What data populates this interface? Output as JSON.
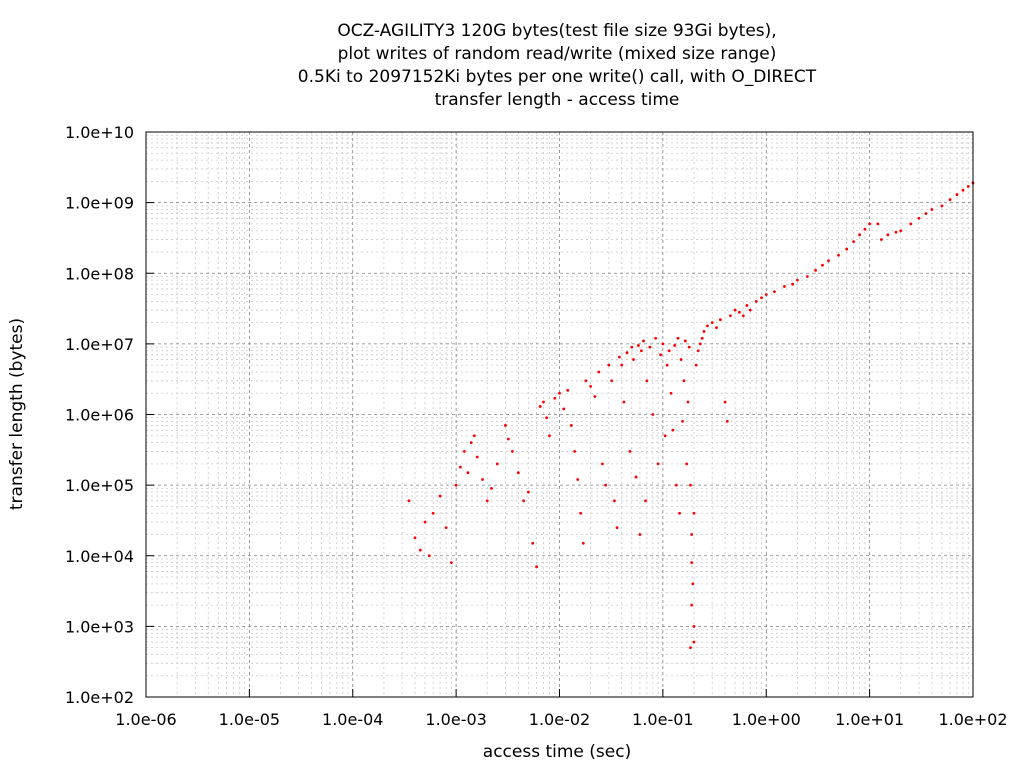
{
  "chart_data": {
    "type": "scatter",
    "title_lines": [
      "OCZ-AGILITY3 120G bytes(test file size 93Gi bytes),",
      "plot writes of random read/write (mixed size range)",
      "0.5Ki to 2097152Ki bytes per one write() call, with O_DIRECT",
      "transfer length - access time"
    ],
    "xlabel": "access time (sec)",
    "ylabel": "transfer length (bytes)",
    "x_scale": "log",
    "y_scale": "log",
    "xlim": [
      1e-06,
      100
    ],
    "ylim": [
      100,
      10000000000.0
    ],
    "x_ticks": [
      {
        "value": 1e-06,
        "label": "1.0e-06"
      },
      {
        "value": 1e-05,
        "label": "1.0e-05"
      },
      {
        "value": 0.0001,
        "label": "1.0e-04"
      },
      {
        "value": 0.001,
        "label": "1.0e-03"
      },
      {
        "value": 0.01,
        "label": "1.0e-02"
      },
      {
        "value": 0.1,
        "label": "1.0e-01"
      },
      {
        "value": 1,
        "label": "1.0e+00"
      },
      {
        "value": 10,
        "label": "1.0e+01"
      },
      {
        "value": 100,
        "label": "1.0e+02"
      }
    ],
    "y_ticks": [
      {
        "value": 100,
        "label": "1.0e+02"
      },
      {
        "value": 1000,
        "label": "1.0e+03"
      },
      {
        "value": 10000,
        "label": "1.0e+04"
      },
      {
        "value": 100000,
        "label": "1.0e+05"
      },
      {
        "value": 1000000,
        "label": "1.0e+06"
      },
      {
        "value": 10000000,
        "label": "1.0e+07"
      },
      {
        "value": 100000000,
        "label": "1.0e+08"
      },
      {
        "value": 1000000000,
        "label": "1.0e+09"
      },
      {
        "value": 10000000000,
        "label": "1.0e+10"
      }
    ],
    "grid": true,
    "legend": "none",
    "point_color": "#ff0000",
    "series": [
      {
        "points": [
          [
            0.00035,
            60000
          ],
          [
            0.0004,
            18000
          ],
          [
            0.00045,
            12000
          ],
          [
            0.0005,
            30000
          ],
          [
            0.00055,
            10000
          ],
          [
            0.0006,
            40000
          ],
          [
            0.0007,
            70000
          ],
          [
            0.0008,
            25000
          ],
          [
            0.0009,
            8000
          ],
          [
            0.001,
            100000
          ],
          [
            0.0011,
            180000
          ],
          [
            0.0012,
            300000
          ],
          [
            0.0013,
            150000
          ],
          [
            0.0014,
            400000
          ],
          [
            0.0015,
            500000
          ],
          [
            0.0016,
            250000
          ],
          [
            0.0018,
            120000
          ],
          [
            0.002,
            60000
          ],
          [
            0.0022,
            90000
          ],
          [
            0.0025,
            200000
          ],
          [
            0.003,
            700000
          ],
          [
            0.0032,
            450000
          ],
          [
            0.0035,
            300000
          ],
          [
            0.004,
            150000
          ],
          [
            0.0045,
            60000
          ],
          [
            0.005,
            80000
          ],
          [
            0.0055,
            15000
          ],
          [
            0.006,
            7000
          ],
          [
            0.0065,
            1300000
          ],
          [
            0.007,
            1500000
          ],
          [
            0.0075,
            900000
          ],
          [
            0.008,
            500000
          ],
          [
            0.009,
            1700000
          ],
          [
            0.01,
            2000000
          ],
          [
            0.011,
            1200000
          ],
          [
            0.012,
            2200000
          ],
          [
            0.013,
            700000
          ],
          [
            0.014,
            300000
          ],
          [
            0.015,
            120000
          ],
          [
            0.016,
            40000
          ],
          [
            0.017,
            15000
          ],
          [
            0.018,
            3000000
          ],
          [
            0.02,
            2500000
          ],
          [
            0.022,
            1800000
          ],
          [
            0.024,
            4000000
          ],
          [
            0.026,
            200000
          ],
          [
            0.028,
            100000
          ],
          [
            0.03,
            5000000
          ],
          [
            0.032,
            3000000
          ],
          [
            0.034,
            60000
          ],
          [
            0.036,
            25000
          ],
          [
            0.038,
            6500000
          ],
          [
            0.04,
            5000000
          ],
          [
            0.042,
            1500000
          ],
          [
            0.045,
            7500000
          ],
          [
            0.048,
            300000
          ],
          [
            0.05,
            9000000
          ],
          [
            0.052,
            6000000
          ],
          [
            0.055,
            130000
          ],
          [
            0.058,
            9500000
          ],
          [
            0.06,
            20000
          ],
          [
            0.062,
            8000000
          ],
          [
            0.065,
            11000000
          ],
          [
            0.068,
            60000
          ],
          [
            0.07,
            3000000
          ],
          [
            0.075,
            9000000
          ],
          [
            0.08,
            1000000
          ],
          [
            0.085,
            12000000
          ],
          [
            0.09,
            200000
          ],
          [
            0.095,
            7000000
          ],
          [
            0.1,
            10000000
          ],
          [
            0.105,
            500000
          ],
          [
            0.11,
            5000000
          ],
          [
            0.115,
            8000000
          ],
          [
            0.12,
            2000000
          ],
          [
            0.125,
            600000
          ],
          [
            0.13,
            9500000
          ],
          [
            0.135,
            100000
          ],
          [
            0.14,
            12000000
          ],
          [
            0.145,
            40000
          ],
          [
            0.15,
            6000000
          ],
          [
            0.155,
            800000
          ],
          [
            0.16,
            3000000
          ],
          [
            0.165,
            11000000
          ],
          [
            0.17,
            200000
          ],
          [
            0.175,
            1500000
          ],
          [
            0.18,
            9000000
          ],
          [
            0.185,
            100000
          ],
          [
            0.19,
            20000
          ],
          [
            0.195,
            4000
          ],
          [
            0.2,
            1000
          ],
          [
            0.185,
            500
          ],
          [
            0.2,
            600
          ],
          [
            0.19,
            2000
          ],
          [
            0.19,
            8000
          ],
          [
            0.2,
            40000
          ],
          [
            0.21,
            5000000
          ],
          [
            0.22,
            8000000
          ],
          [
            0.23,
            10000000
          ],
          [
            0.24,
            12000000
          ],
          [
            0.25,
            15000000
          ],
          [
            0.27,
            18000000
          ],
          [
            0.3,
            20000000
          ],
          [
            0.33,
            17000000
          ],
          [
            0.36,
            22000000
          ],
          [
            0.4,
            1500000
          ],
          [
            0.42,
            800000
          ],
          [
            0.45,
            25000000
          ],
          [
            0.5,
            30000000
          ],
          [
            0.55,
            28000000
          ],
          [
            0.6,
            25000000
          ],
          [
            0.65,
            35000000
          ],
          [
            0.7,
            30000000
          ],
          [
            0.8,
            40000000
          ],
          [
            0.9,
            45000000
          ],
          [
            1,
            50000000
          ],
          [
            1.2,
            55000000
          ],
          [
            1.5,
            65000000
          ],
          [
            1.8,
            70000000
          ],
          [
            2,
            80000000
          ],
          [
            2.5,
            90000000
          ],
          [
            3,
            110000000
          ],
          [
            3.5,
            130000000
          ],
          [
            4,
            150000000
          ],
          [
            5,
            180000000
          ],
          [
            6,
            220000000
          ],
          [
            7,
            280000000
          ],
          [
            8,
            350000000
          ],
          [
            9,
            420000000
          ],
          [
            10,
            500000000
          ],
          [
            12,
            500000000
          ],
          [
            13,
            300000000
          ],
          [
            15,
            350000000
          ],
          [
            18,
            380000000
          ],
          [
            20,
            400000000
          ],
          [
            25,
            500000000
          ],
          [
            30,
            600000000
          ],
          [
            35,
            700000000
          ],
          [
            40,
            800000000
          ],
          [
            50,
            900000000
          ],
          [
            60,
            1100000000
          ],
          [
            70,
            1300000000
          ],
          [
            80,
            1500000000
          ],
          [
            90,
            1700000000
          ],
          [
            100,
            1900000000
          ]
        ]
      }
    ]
  }
}
